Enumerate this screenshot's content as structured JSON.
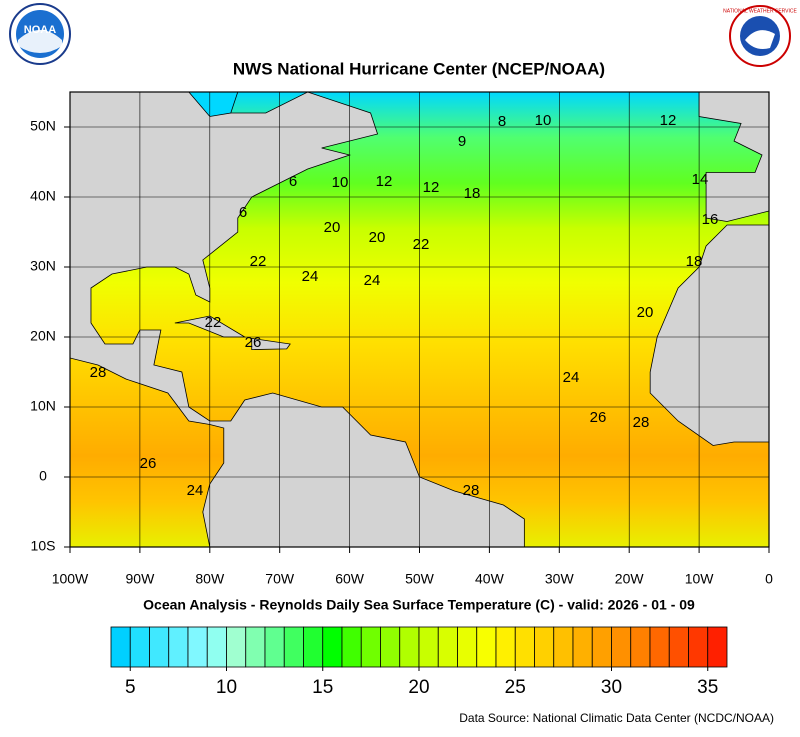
{
  "header": {
    "title": "NWS National Hurricane Center (NCEP/NOAA)",
    "logo_left": "NOAA",
    "logo_right": "NATIONAL WEATHER SERVICE"
  },
  "map": {
    "xlim": [
      -100,
      0
    ],
    "ylim": [
      -10,
      55
    ],
    "xticks": [
      {
        "value": -100,
        "label": "100W"
      },
      {
        "value": -90,
        "label": "90W"
      },
      {
        "value": -80,
        "label": "80W"
      },
      {
        "value": -70,
        "label": "70W"
      },
      {
        "value": -60,
        "label": "60W"
      },
      {
        "value": -50,
        "label": "50W"
      },
      {
        "value": -40,
        "label": "40W"
      },
      {
        "value": -30,
        "label": "30W"
      },
      {
        "value": -20,
        "label": "20W"
      },
      {
        "value": -10,
        "label": "10W"
      },
      0
    ],
    "yticks": [
      {
        "value": -10,
        "label": "10S"
      },
      0,
      {
        "value": 10,
        "label": "10N"
      },
      {
        "value": 20,
        "label": "20N"
      },
      {
        "value": 30,
        "label": "30N"
      },
      {
        "value": 40,
        "label": "40N"
      },
      {
        "value": 50,
        "label": "50N"
      }
    ],
    "grid": true,
    "land_color": "#d3d3d3",
    "contour_labels": [
      8,
      10,
      12,
      9,
      6,
      10,
      12,
      12,
      18,
      14,
      16,
      6,
      20,
      20,
      22,
      18,
      22,
      24,
      24,
      22,
      20,
      26,
      28,
      24,
      26,
      28,
      26,
      24,
      28
    ]
  },
  "subtitle": "Ocean Analysis - Reynolds Daily Sea Surface Temperature (C) - valid: 2026 - 01 - 09",
  "colorbar": {
    "range": [
      4,
      36
    ],
    "ticks": [
      5,
      10,
      15,
      20,
      25,
      30,
      35
    ],
    "colors": [
      "#00d0ff",
      "#20e0ff",
      "#40e8ff",
      "#60f0ff",
      "#80f8ff",
      "#90fff0",
      "#a0ffd0",
      "#80ffb0",
      "#60ff90",
      "#40ff60",
      "#20ff30",
      "#00ff00",
      "#40ff00",
      "#70ff00",
      "#90ff00",
      "#b0ff00",
      "#c8ff00",
      "#d8ff00",
      "#e8ff00",
      "#f8ff00",
      "#fff000",
      "#ffe000",
      "#ffd000",
      "#ffc000",
      "#ffb000",
      "#ffa000",
      "#ff9000",
      "#ff8000",
      "#ff6800",
      "#ff5000",
      "#ff3800",
      "#ff2000"
    ]
  },
  "source": "Data Source: National Climatic Data Center (NCDC/NOAA)"
}
